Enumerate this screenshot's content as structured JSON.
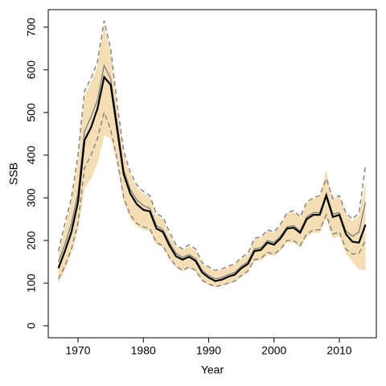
{
  "chart_data": {
    "type": "line",
    "xlabel": "Year",
    "ylabel": "SSB",
    "x": [
      1967,
      1968,
      1969,
      1970,
      1971,
      1972,
      1973,
      1974,
      1975,
      1976,
      1977,
      1978,
      1979,
      1980,
      1981,
      1982,
      1983,
      1984,
      1985,
      1986,
      1987,
      1988,
      1989,
      1990,
      1991,
      1992,
      1993,
      1994,
      1995,
      1996,
      1997,
      1998,
      1999,
      2000,
      2001,
      2002,
      2003,
      2004,
      2005,
      2006,
      2007,
      2008,
      2009,
      2010,
      2011,
      2012,
      2013,
      2014
    ],
    "band": {
      "color": "#f5deb3",
      "upper": [
        168,
        230,
        295,
        390,
        540,
        570,
        610,
        705,
        640,
        510,
        405,
        355,
        325,
        310,
        300,
        258,
        250,
        215,
        187,
        177,
        187,
        177,
        146,
        136,
        128,
        131,
        138,
        143,
        158,
        168,
        203,
        206,
        223,
        218,
        236,
        262,
        268,
        252,
        288,
        298,
        303,
        365,
        296,
        302,
        262,
        245,
        258,
        340
      ],
      "lower": [
        100,
        130,
        170,
        225,
        320,
        345,
        380,
        445,
        440,
        380,
        290,
        250,
        232,
        225,
        222,
        190,
        183,
        155,
        137,
        127,
        134,
        127,
        104,
        96,
        90,
        93,
        98,
        103,
        115,
        125,
        150,
        153,
        167,
        163,
        175,
        195,
        195,
        183,
        208,
        218,
        218,
        252,
        205,
        210,
        170,
        150,
        132,
        130
      ]
    },
    "series": [
      {
        "color": "#808080",
        "linestyle": "dashed",
        "values": [
          175,
          240,
          300,
          400,
          550,
          580,
          620,
          715,
          650,
          520,
          410,
          360,
          330,
          315,
          305,
          262,
          255,
          220,
          190,
          180,
          190,
          180,
          148,
          138,
          130,
          133,
          140,
          145,
          160,
          170,
          205,
          208,
          225,
          220,
          238,
          265,
          270,
          255,
          290,
          300,
          305,
          345,
          298,
          305,
          265,
          250,
          265,
          375
        ]
      },
      {
        "color": "#808080",
        "linestyle": "dashed",
        "values": [
          110,
          140,
          180,
          240,
          370,
          400,
          440,
          500,
          460,
          390,
          300,
          260,
          240,
          232,
          228,
          195,
          188,
          160,
          140,
          130,
          138,
          130,
          107,
          98,
          92,
          95,
          100,
          105,
          118,
          128,
          155,
          158,
          172,
          168,
          180,
          200,
          200,
          188,
          215,
          225,
          225,
          260,
          215,
          220,
          180,
          168,
          170,
          200
        ]
      },
      {
        "color": "#808080",
        "linestyle": "solid",
        "values": [
          150,
          190,
          240,
          310,
          455,
          490,
          530,
          610,
          580,
          475,
          365,
          320,
          295,
          282,
          275,
          235,
          225,
          195,
          170,
          160,
          167,
          157,
          130,
          118,
          110,
          113,
          120,
          125,
          140,
          150,
          180,
          183,
          200,
          195,
          210,
          232,
          235,
          222,
          255,
          265,
          265,
          310,
          262,
          265,
          222,
          210,
          220,
          290
        ]
      },
      {
        "color": "#000000",
        "linestyle": "solid",
        "values": [
          135,
          175,
          220,
          290,
          435,
          465,
          510,
          583,
          565,
          460,
          355,
          310,
          285,
          272,
          268,
          228,
          220,
          188,
          163,
          155,
          162,
          152,
          125,
          113,
          105,
          108,
          115,
          120,
          135,
          145,
          175,
          178,
          195,
          190,
          205,
          228,
          230,
          218,
          250,
          260,
          260,
          305,
          255,
          260,
          215,
          197,
          195,
          237
        ]
      }
    ],
    "xlim": [
      1965.45,
      2015.66
    ],
    "ylim": [
      -28,
      741
    ],
    "xticks": [
      1970,
      1980,
      1990,
      2000,
      2010
    ],
    "yticks": [
      0,
      100,
      200,
      300,
      400,
      500,
      600,
      700
    ]
  }
}
